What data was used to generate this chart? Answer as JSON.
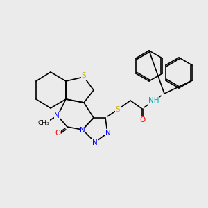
{
  "bg_color": "#ebebeb",
  "atom_colors": {
    "C": "#000000",
    "N": "#0000ff",
    "O": "#ff0000",
    "S": "#ccaa00",
    "H": "#00aaaa"
  },
  "figsize": [
    3.0,
    3.0
  ],
  "dpi": 100
}
